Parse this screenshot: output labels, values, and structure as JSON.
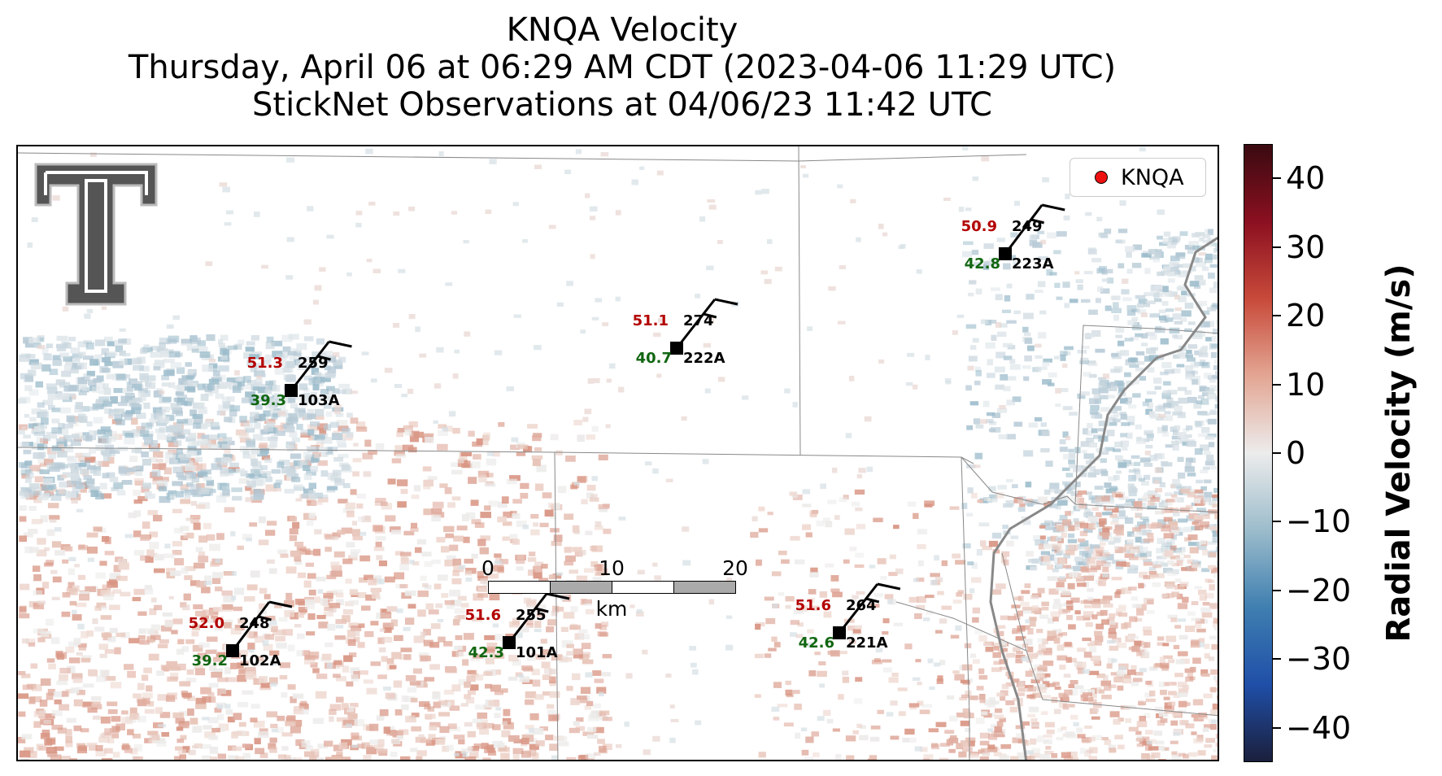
{
  "title": {
    "line1": "KNQA Velocity",
    "line2": "Thursday, April 06 at 06:29 AM CDT (2023-04-06 11:29 UTC)",
    "line3": "StickNet Observations at 04/06/23 11:42 UTC"
  },
  "legend": {
    "label": "KNQA",
    "marker_color": "#ee1111"
  },
  "logo": {
    "name": "texas-tech-double-t-logo"
  },
  "stations": [
    {
      "id": "103A",
      "temp": "51.3",
      "dew": "39.3",
      "dir": "259",
      "wind_dir_deg": 259
    },
    {
      "id": "222A",
      "temp": "51.1",
      "dew": "40.7",
      "dir": "274",
      "wind_dir_deg": 274
    },
    {
      "id": "223A",
      "temp": "50.9",
      "dew": "42.8",
      "dir": "249",
      "wind_dir_deg": 249
    },
    {
      "id": "102A",
      "temp": "52.0",
      "dew": "39.2",
      "dir": "248",
      "wind_dir_deg": 248
    },
    {
      "id": "101A",
      "temp": "51.6",
      "dew": "42.3",
      "dir": "255",
      "wind_dir_deg": 255
    },
    {
      "id": "221A",
      "temp": "51.6",
      "dew": "42.6",
      "dir": "264",
      "wind_dir_deg": 264
    }
  ],
  "scalebar": {
    "ticks": [
      "0",
      "10",
      "20"
    ],
    "unit": "km"
  },
  "colorbar": {
    "label": "Radial Velocity (m/s)",
    "min": -45,
    "max": 45,
    "ticks": [
      "40",
      "30",
      "20",
      "10",
      "0",
      "−10",
      "−20",
      "−30",
      "−40"
    ],
    "colors": [
      "#3a0a10",
      "#8b1020",
      "#c84a3a",
      "#e3a693",
      "#ececec",
      "#9cbccb",
      "#3f7fb0",
      "#1f4fa8",
      "#1b1f3c"
    ]
  },
  "colors": {
    "temp": "#b30000",
    "dew": "#116611"
  }
}
